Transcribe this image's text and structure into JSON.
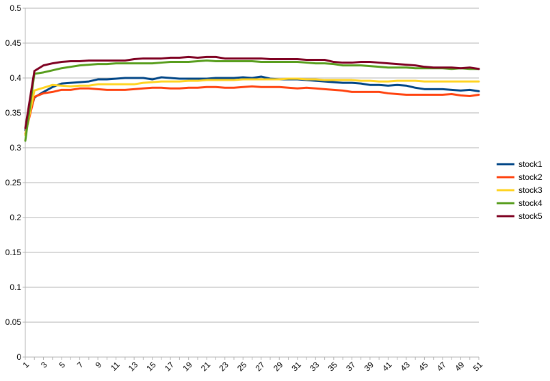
{
  "chart_data": {
    "type": "line",
    "title": "",
    "xlabel": "",
    "ylabel": "",
    "x": [
      1,
      2,
      3,
      4,
      5,
      6,
      7,
      8,
      9,
      10,
      11,
      12,
      13,
      14,
      15,
      16,
      17,
      18,
      19,
      20,
      21,
      22,
      23,
      24,
      25,
      26,
      27,
      28,
      29,
      30,
      31,
      32,
      33,
      34,
      35,
      36,
      37,
      38,
      39,
      40,
      41,
      42,
      43,
      44,
      45,
      46,
      47,
      48,
      49,
      50,
      51
    ],
    "xticks": [
      1,
      3,
      5,
      7,
      9,
      11,
      13,
      15,
      17,
      19,
      21,
      23,
      25,
      27,
      29,
      31,
      33,
      35,
      37,
      39,
      41,
      43,
      45,
      47,
      49,
      51
    ],
    "ylim": [
      0,
      0.5
    ],
    "yticks": [
      0,
      0.05,
      0.1,
      0.15,
      0.2,
      0.25,
      0.3,
      0.35,
      0.4,
      0.45,
      0.5
    ],
    "ytick_labels": [
      "0",
      "0.05",
      "0.1",
      "0.15",
      "0.2",
      "0.25",
      "0.3",
      "0.35",
      "0.4",
      "0.45",
      "0.5"
    ],
    "grid": "horizontal",
    "legend_position": "right",
    "series": [
      {
        "name": "stock1",
        "color": "#004586",
        "values": [
          0.325,
          0.372,
          0.38,
          0.387,
          0.392,
          0.393,
          0.394,
          0.395,
          0.398,
          0.398,
          0.399,
          0.4,
          0.4,
          0.4,
          0.398,
          0.401,
          0.4,
          0.399,
          0.399,
          0.399,
          0.399,
          0.4,
          0.4,
          0.4,
          0.401,
          0.4,
          0.402,
          0.399,
          0.398,
          0.398,
          0.398,
          0.397,
          0.396,
          0.395,
          0.394,
          0.393,
          0.393,
          0.392,
          0.39,
          0.39,
          0.389,
          0.39,
          0.389,
          0.386,
          0.384,
          0.384,
          0.384,
          0.383,
          0.382,
          0.383,
          0.381
        ]
      },
      {
        "name": "stock2",
        "color": "#ff420e",
        "values": [
          0.32,
          0.373,
          0.378,
          0.38,
          0.383,
          0.383,
          0.385,
          0.385,
          0.384,
          0.383,
          0.383,
          0.383,
          0.384,
          0.385,
          0.386,
          0.386,
          0.385,
          0.385,
          0.386,
          0.386,
          0.387,
          0.387,
          0.386,
          0.386,
          0.387,
          0.388,
          0.387,
          0.387,
          0.387,
          0.386,
          0.385,
          0.386,
          0.385,
          0.384,
          0.383,
          0.382,
          0.38,
          0.38,
          0.38,
          0.38,
          0.378,
          0.377,
          0.376,
          0.376,
          0.376,
          0.376,
          0.376,
          0.377,
          0.375,
          0.374,
          0.376
        ]
      },
      {
        "name": "stock3",
        "color": "#ffd320",
        "values": [
          0.318,
          0.382,
          0.386,
          0.39,
          0.389,
          0.388,
          0.389,
          0.389,
          0.391,
          0.391,
          0.391,
          0.391,
          0.391,
          0.393,
          0.394,
          0.395,
          0.395,
          0.395,
          0.396,
          0.396,
          0.397,
          0.397,
          0.397,
          0.397,
          0.398,
          0.398,
          0.398,
          0.398,
          0.398,
          0.399,
          0.399,
          0.398,
          0.398,
          0.397,
          0.397,
          0.397,
          0.397,
          0.396,
          0.396,
          0.395,
          0.395,
          0.396,
          0.396,
          0.396,
          0.395,
          0.395,
          0.395,
          0.395,
          0.395,
          0.395,
          0.395
        ]
      },
      {
        "name": "stock4",
        "color": "#579d1c",
        "values": [
          0.31,
          0.406,
          0.408,
          0.411,
          0.414,
          0.416,
          0.418,
          0.419,
          0.42,
          0.42,
          0.421,
          0.421,
          0.421,
          0.421,
          0.421,
          0.422,
          0.423,
          0.423,
          0.423,
          0.424,
          0.425,
          0.424,
          0.424,
          0.424,
          0.424,
          0.424,
          0.423,
          0.423,
          0.423,
          0.423,
          0.423,
          0.422,
          0.421,
          0.421,
          0.42,
          0.418,
          0.418,
          0.418,
          0.417,
          0.416,
          0.415,
          0.415,
          0.415,
          0.414,
          0.414,
          0.414,
          0.414,
          0.413,
          0.414,
          0.413,
          0.413
        ]
      },
      {
        "name": "stock5",
        "color": "#7e0021",
        "values": [
          0.328,
          0.41,
          0.418,
          0.421,
          0.423,
          0.424,
          0.424,
          0.425,
          0.425,
          0.425,
          0.425,
          0.425,
          0.427,
          0.428,
          0.428,
          0.428,
          0.429,
          0.429,
          0.43,
          0.429,
          0.43,
          0.43,
          0.428,
          0.428,
          0.428,
          0.428,
          0.428,
          0.427,
          0.427,
          0.427,
          0.427,
          0.426,
          0.426,
          0.426,
          0.423,
          0.422,
          0.422,
          0.423,
          0.423,
          0.422,
          0.421,
          0.42,
          0.419,
          0.418,
          0.416,
          0.415,
          0.415,
          0.415,
          0.414,
          0.415,
          0.413
        ]
      }
    ]
  }
}
